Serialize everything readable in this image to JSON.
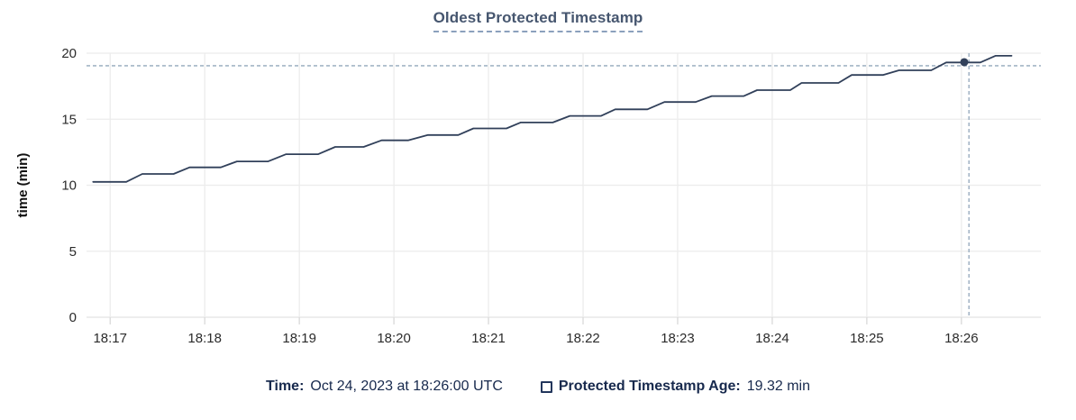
{
  "title": "Oldest Protected Timestamp",
  "chart_data": {
    "type": "line",
    "title": "Oldest Protected Timestamp",
    "xlabel": "",
    "ylabel": "time (min)",
    "ylim": [
      0,
      20
    ],
    "y_ticks": [
      0,
      5,
      10,
      15,
      20
    ],
    "x_axis_unit": "minutes after 18:16 UTC",
    "x_domain": [
      0.75,
      10.84
    ],
    "x_ticks": [
      {
        "t": 1,
        "label": "18:17"
      },
      {
        "t": 2,
        "label": "18:18"
      },
      {
        "t": 3,
        "label": "18:19"
      },
      {
        "t": 4,
        "label": "18:20"
      },
      {
        "t": 5,
        "label": "18:21"
      },
      {
        "t": 6,
        "label": "18:22"
      },
      {
        "t": 7,
        "label": "18:23"
      },
      {
        "t": 8,
        "label": "18:24"
      },
      {
        "t": 9,
        "label": "18:25"
      },
      {
        "t": 10,
        "label": "18:26"
      }
    ],
    "grid": true,
    "legend_position": "bottom",
    "series": [
      {
        "name": "Protected Timestamp Age",
        "color": "#31405a",
        "points": [
          [
            0.82,
            10.25
          ],
          [
            1.17,
            10.25
          ],
          [
            1.34,
            10.85
          ],
          [
            1.67,
            10.85
          ],
          [
            1.84,
            11.35
          ],
          [
            2.17,
            11.35
          ],
          [
            2.34,
            11.8
          ],
          [
            2.67,
            11.8
          ],
          [
            2.86,
            12.35
          ],
          [
            3.2,
            12.35
          ],
          [
            3.38,
            12.9
          ],
          [
            3.68,
            12.9
          ],
          [
            3.87,
            13.4
          ],
          [
            4.15,
            13.4
          ],
          [
            4.36,
            13.8
          ],
          [
            4.68,
            13.8
          ],
          [
            4.84,
            14.3
          ],
          [
            5.19,
            14.3
          ],
          [
            5.34,
            14.75
          ],
          [
            5.68,
            14.75
          ],
          [
            5.86,
            15.25
          ],
          [
            6.19,
            15.25
          ],
          [
            6.34,
            15.75
          ],
          [
            6.68,
            15.75
          ],
          [
            6.86,
            16.3
          ],
          [
            7.19,
            16.3
          ],
          [
            7.36,
            16.75
          ],
          [
            7.7,
            16.75
          ],
          [
            7.84,
            17.2
          ],
          [
            8.19,
            17.2
          ],
          [
            8.31,
            17.75
          ],
          [
            8.7,
            17.75
          ],
          [
            8.84,
            18.35
          ],
          [
            9.17,
            18.35
          ],
          [
            9.34,
            18.7
          ],
          [
            9.68,
            18.7
          ],
          [
            9.84,
            19.3
          ],
          [
            10.2,
            19.3
          ],
          [
            10.36,
            19.8
          ],
          [
            10.53,
            19.8
          ]
        ]
      }
    ],
    "hover": {
      "point_t": 10.03,
      "point_time": "18:26:00",
      "point_value": 19.32,
      "crosshair_t": 10.08,
      "crosshair_value": 19.05
    }
  },
  "legend": {
    "time_label": "Time:",
    "time_value": "Oct 24, 2023 at 18:26:00 UTC",
    "series_label": "Protected Timestamp Age:",
    "series_value": "19.32 min"
  },
  "colors": {
    "line": "#31405a",
    "hover_dot": "#31405a",
    "crosshair": "#a4b5c6",
    "grid": "#ececec",
    "axis_line": "#e2e2e2",
    "tick_mark": "#d9d9d9",
    "axis_text": "#2b2b2b",
    "y_axis_title_text": "#111111",
    "title_text": "#46566f",
    "title_underline": "#8ba0bd",
    "legend_text": "#17294d",
    "background": "#ffffff"
  }
}
